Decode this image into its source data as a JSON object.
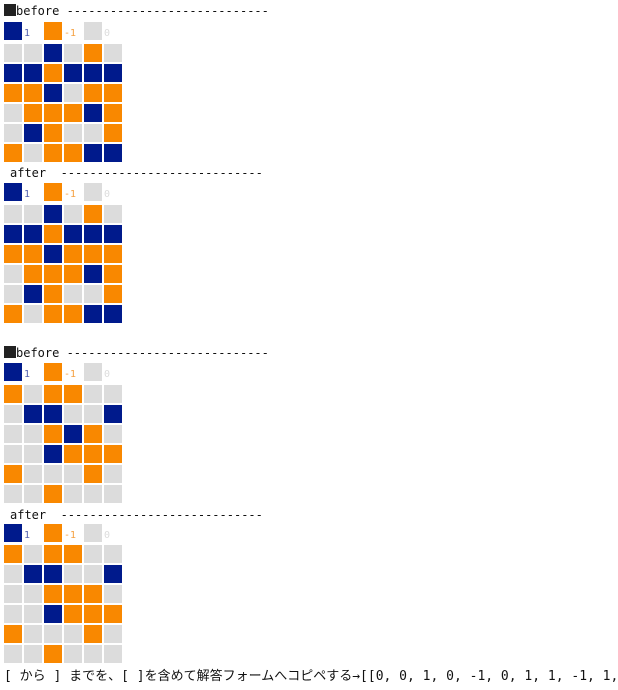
{
  "colors": {
    "1": "#001a8c",
    "-1": "#f98800",
    "0": "#dcdcdc"
  },
  "legend": [
    {
      "value": "1",
      "color": "#001a8c",
      "text_color": "#5563b0"
    },
    {
      "value": "-1",
      "color": "#f98800",
      "text_color": "#f5a040"
    },
    {
      "value": "0",
      "color": "#dcdcdc",
      "text_color": "#dcdcdc"
    }
  ],
  "blocks": [
    {
      "before_label": "before ----------------------------",
      "after_label": "after  ----------------------------",
      "before": [
        [
          0,
          0,
          1,
          0,
          -1,
          0
        ],
        [
          1,
          1,
          -1,
          1,
          1,
          1
        ],
        [
          -1,
          -1,
          1,
          0,
          -1,
          -1
        ],
        [
          0,
          -1,
          -1,
          -1,
          1,
          -1
        ],
        [
          0,
          1,
          -1,
          0,
          0,
          -1
        ],
        [
          -1,
          0,
          -1,
          -1,
          1,
          1
        ]
      ],
      "after": [
        [
          0,
          0,
          1,
          0,
          -1,
          0
        ],
        [
          1,
          1,
          -1,
          1,
          1,
          1
        ],
        [
          -1,
          -1,
          1,
          -1,
          -1,
          -1
        ],
        [
          0,
          -1,
          -1,
          -1,
          1,
          -1
        ],
        [
          0,
          1,
          -1,
          0,
          0,
          -1
        ],
        [
          -1,
          0,
          -1,
          -1,
          1,
          1
        ]
      ]
    },
    {
      "before_label": "before ----------------------------",
      "after_label": "after  ----------------------------",
      "before": [
        [
          -1,
          0,
          -1,
          -1,
          0,
          0
        ],
        [
          0,
          1,
          1,
          0,
          0,
          1
        ],
        [
          0,
          0,
          -1,
          1,
          -1,
          0
        ],
        [
          0,
          0,
          1,
          -1,
          -1,
          -1
        ],
        [
          -1,
          0,
          0,
          0,
          -1,
          0
        ],
        [
          0,
          0,
          -1,
          0,
          0,
          0
        ]
      ],
      "after": [
        [
          -1,
          0,
          -1,
          -1,
          0,
          0
        ],
        [
          0,
          1,
          1,
          0,
          0,
          1
        ],
        [
          0,
          0,
          -1,
          -1,
          -1,
          0
        ],
        [
          0,
          0,
          1,
          -1,
          -1,
          -1
        ],
        [
          -1,
          0,
          0,
          0,
          -1,
          0
        ],
        [
          0,
          0,
          -1,
          0,
          0,
          0
        ]
      ]
    }
  ],
  "footer": "[ から ] までを、[ ]を含めて解答フォームへコピペする→[[0, 0, 1, 0, -1, 0, 1, 1, -1, 1,"
}
